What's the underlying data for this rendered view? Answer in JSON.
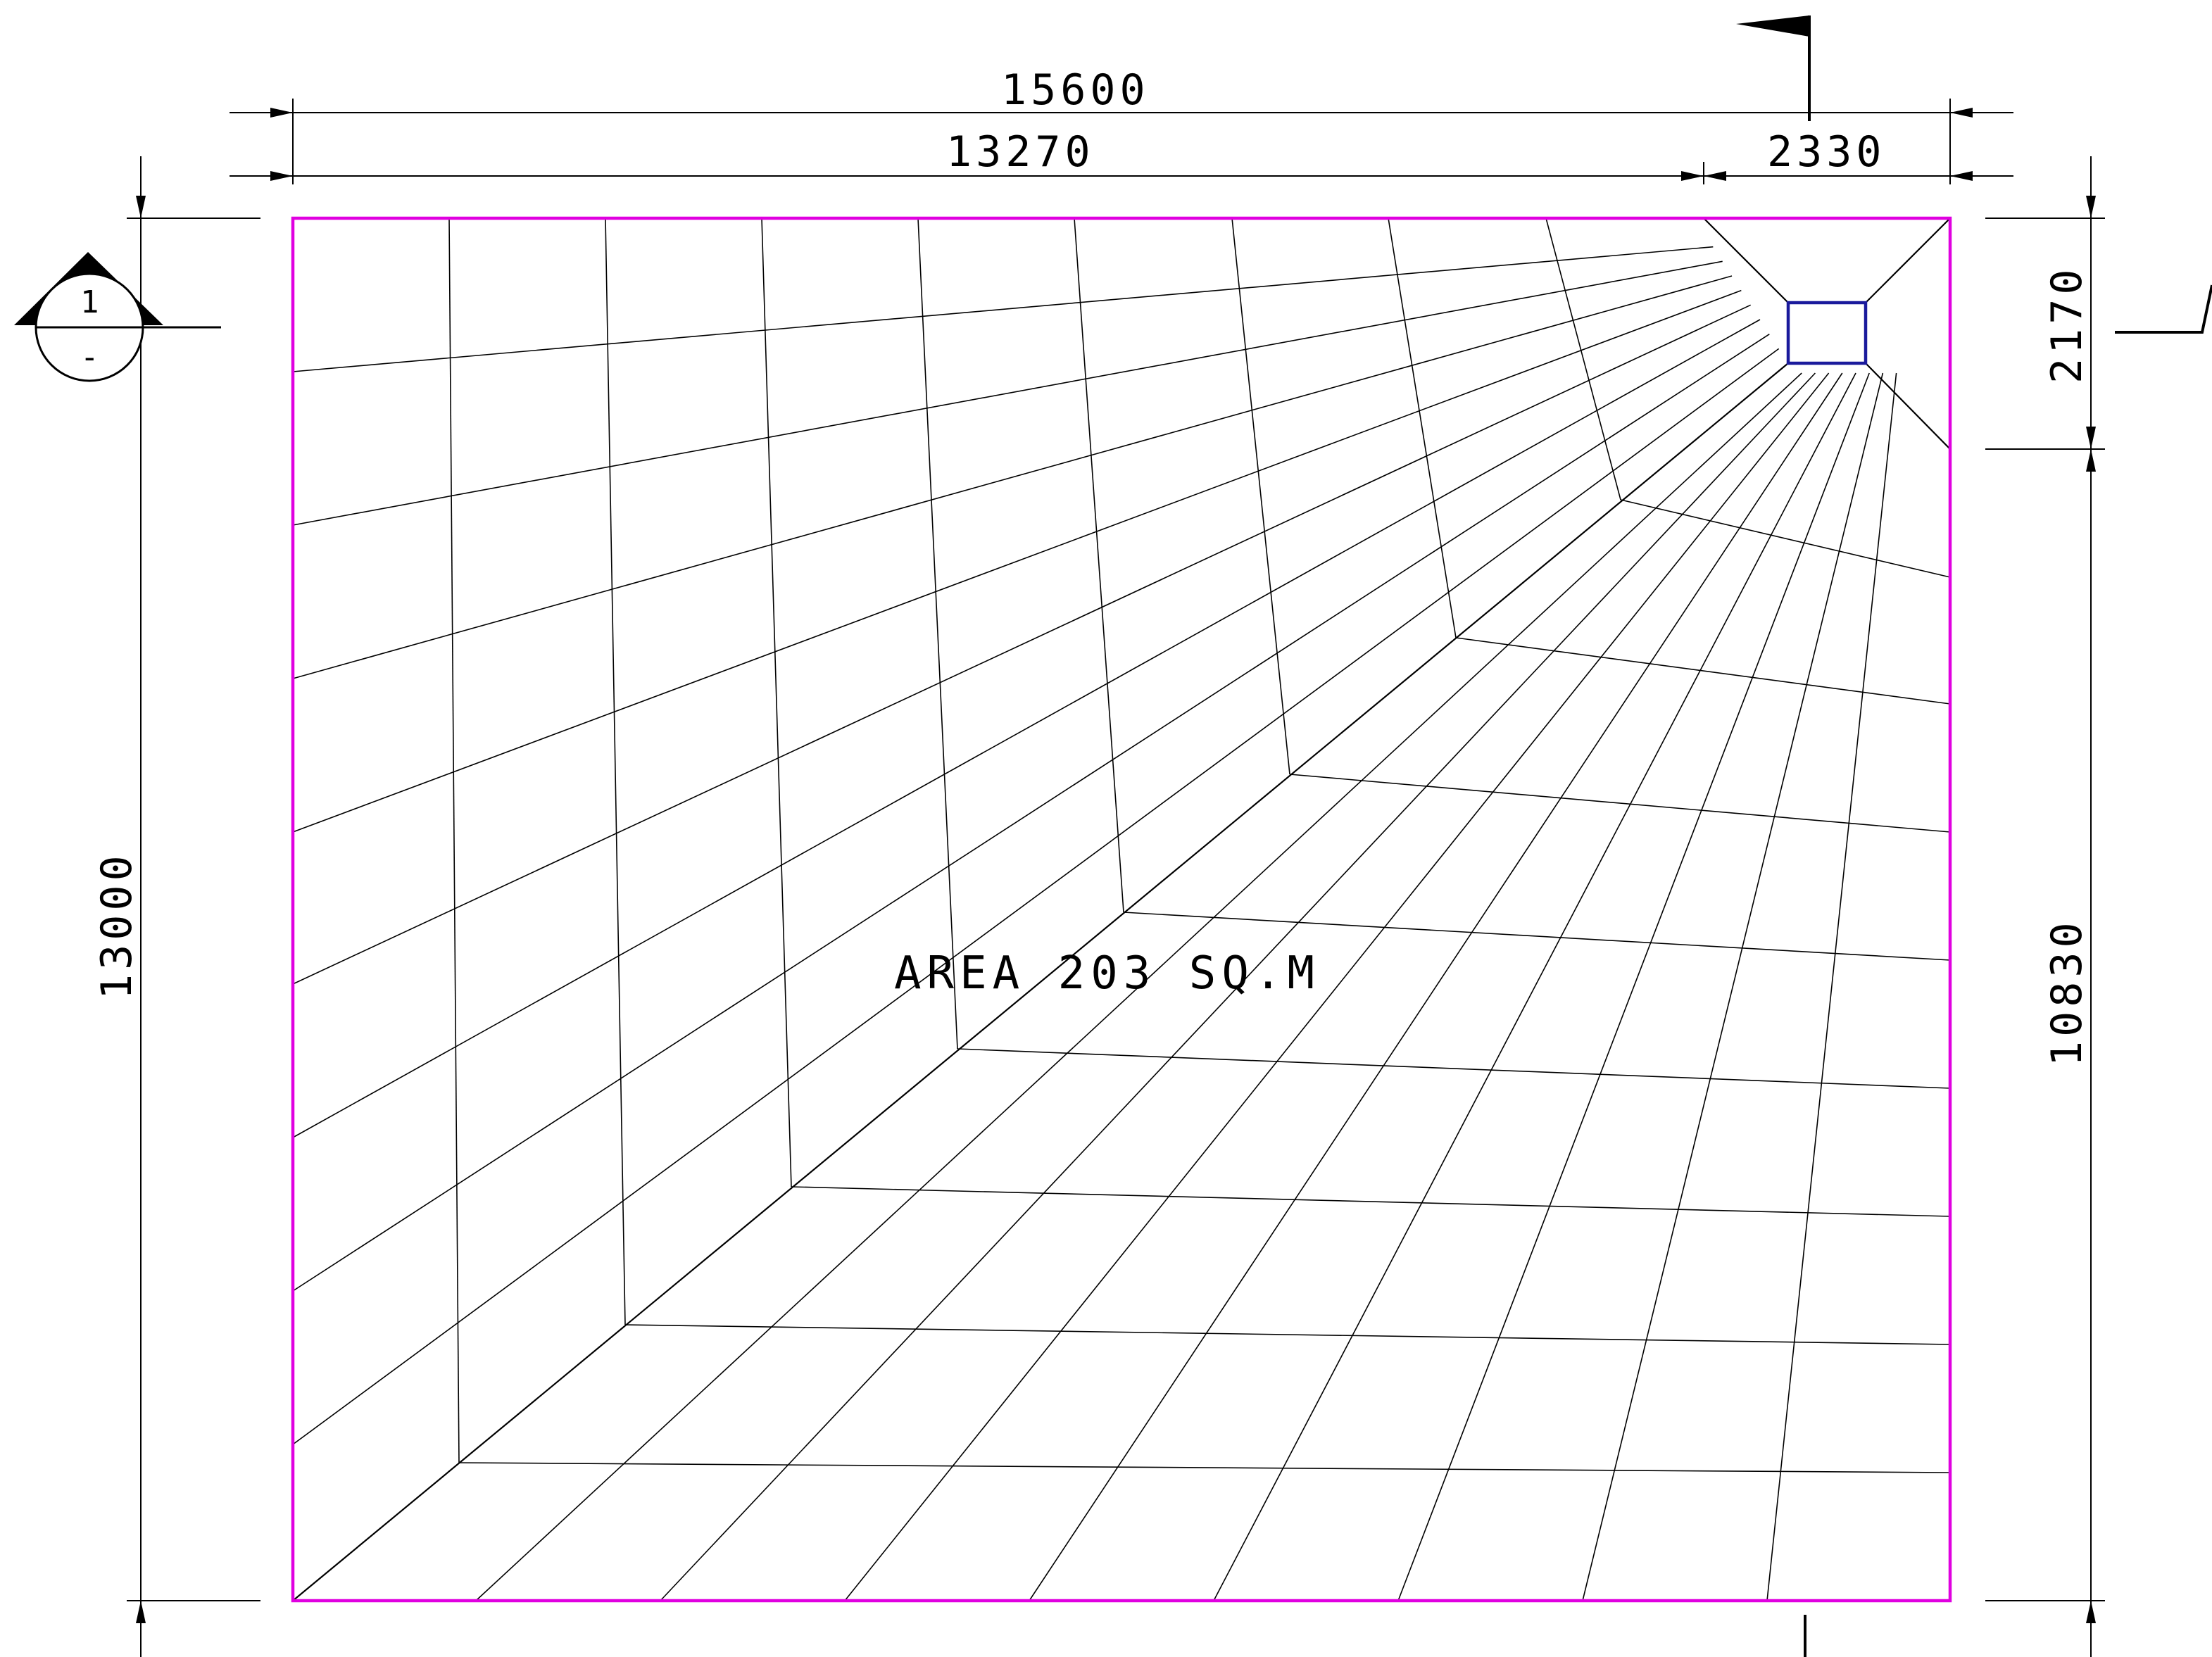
{
  "dimensions": {
    "top_overall": "15600",
    "top_left": "13270",
    "top_right": "2330",
    "left_overall": "13000",
    "right_top": "2170",
    "right_bottom": "10830"
  },
  "area_label": "AREA 203 SQ.M",
  "section_marker": {
    "number": "1",
    "sheet": "-"
  },
  "colors": {
    "boundary": "#e000e0",
    "drain": "#1a1a9c",
    "lines": "#000000"
  }
}
